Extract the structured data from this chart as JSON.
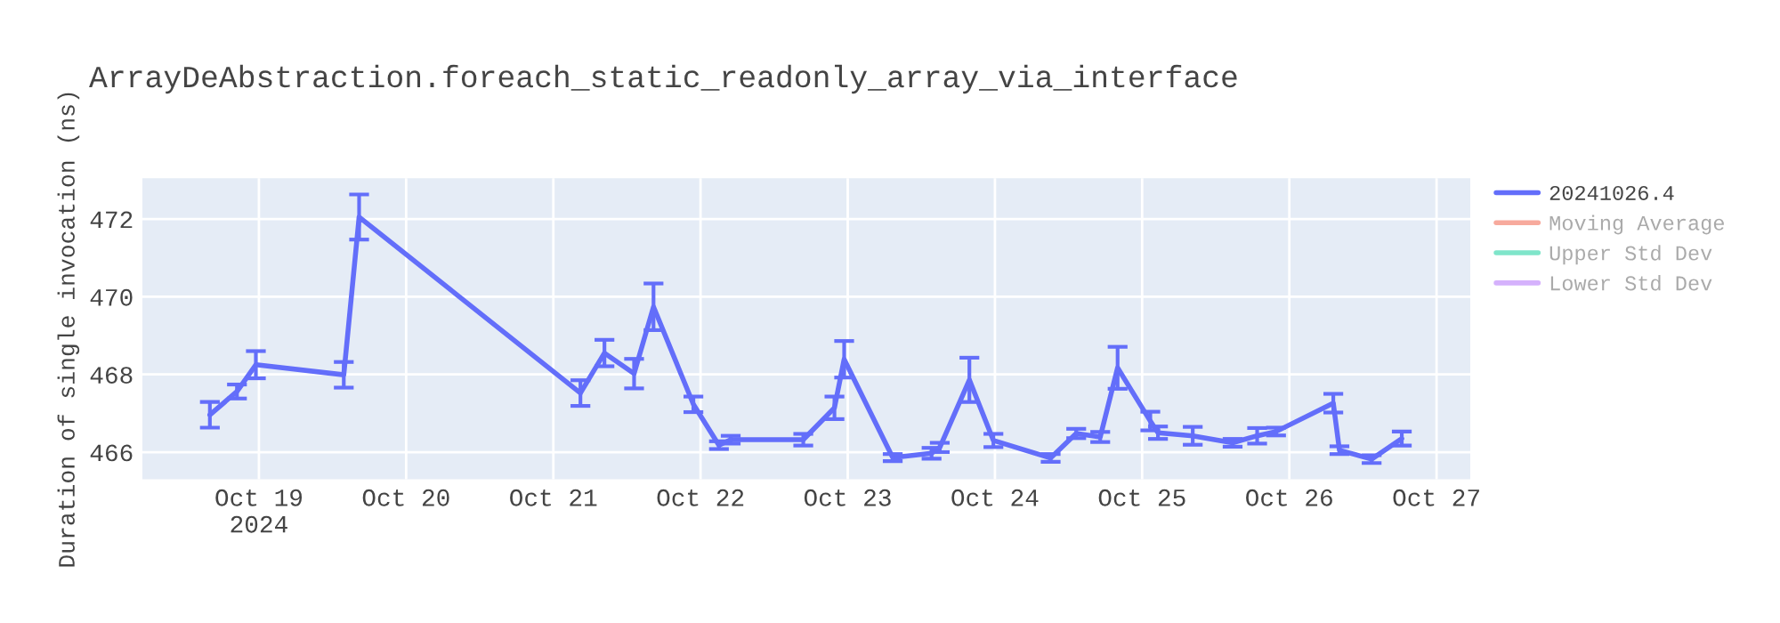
{
  "chart_data": {
    "type": "line",
    "title": "ArrayDeAbstraction.foreach_static_readonly_array_via_interface",
    "ylabel": "Duration of single invocation (ns)",
    "x": [
      "2024-10-18T16:00",
      "2024-10-18T20:25",
      "2024-10-18T23:30",
      "2024-10-19T13:50",
      "2024-10-19T16:20",
      "2024-10-21T04:25",
      "2024-10-21T08:20",
      "2024-10-21T13:10",
      "2024-10-21T16:20",
      "2024-10-21T22:50",
      "2024-10-22T03:00",
      "2024-10-22T04:55",
      "2024-10-22T16:45",
      "2024-10-22T21:50",
      "2024-10-22T23:25",
      "2024-10-23T07:20",
      "2024-10-23T13:40",
      "2024-10-23T15:00",
      "2024-10-23T19:50",
      "2024-10-23T23:45",
      "2024-10-24T09:05",
      "2024-10-24T13:15",
      "2024-10-24T17:10",
      "2024-10-24T20:00",
      "2024-10-25T01:20",
      "2024-10-25T02:35",
      "2024-10-25T08:15",
      "2024-10-25T14:45",
      "2024-10-25T18:45",
      "2024-10-25T21:50",
      "2024-10-26T07:10",
      "2024-10-26T08:10",
      "2024-10-26T13:25",
      "2024-10-26T18:20"
    ],
    "series": [
      {
        "name": "20241026.4",
        "color": "#636efa",
        "values": [
          466.96,
          467.56,
          468.25,
          467.99,
          472.05,
          467.52,
          468.55,
          468.02,
          469.74,
          467.23,
          466.18,
          466.32,
          466.32,
          467.14,
          468.39,
          465.86,
          465.97,
          466.12,
          467.86,
          466.3,
          465.85,
          466.48,
          466.39,
          468.17,
          466.8,
          466.5,
          466.42,
          466.24,
          466.42,
          466.53,
          467.26,
          466.05,
          465.82,
          466.35
        ],
        "errors": [
          0.33,
          0.18,
          0.35,
          0.33,
          0.58,
          0.33,
          0.34,
          0.38,
          0.6,
          0.2,
          0.1,
          0.1,
          0.15,
          0.29,
          0.47,
          0.09,
          0.14,
          0.12,
          0.57,
          0.17,
          0.1,
          0.12,
          0.13,
          0.54,
          0.24,
          0.16,
          0.23,
          0.1,
          0.2,
          0.1,
          0.24,
          0.1,
          0.1,
          0.18
        ]
      },
      {
        "name": "Moving Average",
        "color": "#ef553b",
        "values": [
          null,
          null,
          null,
          null,
          null,
          null,
          null,
          null,
          null,
          null,
          null,
          null,
          null,
          null,
          null,
          null,
          null,
          null,
          null,
          null,
          null,
          null,
          null,
          null,
          null,
          null,
          null,
          null,
          null,
          null,
          null,
          null,
          null,
          null
        ]
      },
      {
        "name": "Upper Std Dev",
        "color": "#00cc96",
        "values": [
          null,
          null,
          null,
          null,
          null,
          null,
          null,
          null,
          null,
          null,
          null,
          null,
          null,
          null,
          null,
          null,
          null,
          null,
          null,
          null,
          null,
          null,
          null,
          null,
          null,
          null,
          null,
          null,
          null,
          null,
          null,
          null,
          null,
          null
        ]
      },
      {
        "name": "Lower Std Dev",
        "color": "#ab63fa",
        "values": [
          null,
          null,
          null,
          null,
          null,
          null,
          null,
          null,
          null,
          null,
          null,
          null,
          null,
          null,
          null,
          null,
          null,
          null,
          null,
          null,
          null,
          null,
          null,
          null,
          null,
          null,
          null,
          null,
          null,
          null,
          null,
          null,
          null,
          null
        ]
      }
    ],
    "xlim": [
      "2024-10-18T05:00",
      "2024-10-27T05:30"
    ],
    "xticks": [
      {
        "value": "2024-10-19",
        "label": "Oct 19\n2024"
      },
      {
        "value": "2024-10-20",
        "label": "Oct 20"
      },
      {
        "value": "2024-10-21",
        "label": "Oct 21"
      },
      {
        "value": "2024-10-22",
        "label": "Oct 22"
      },
      {
        "value": "2024-10-23",
        "label": "Oct 23"
      },
      {
        "value": "2024-10-24",
        "label": "Oct 24"
      },
      {
        "value": "2024-10-25",
        "label": "Oct 25"
      },
      {
        "value": "2024-10-26",
        "label": "Oct 26"
      },
      {
        "value": "2024-10-27",
        "label": "Oct 27"
      }
    ],
    "ylim": [
      465.3,
      473.05
    ],
    "yticks": [
      466,
      468,
      470,
      472
    ],
    "grid": true,
    "legend": "top right",
    "marker": "none",
    "line_style": "solid"
  }
}
